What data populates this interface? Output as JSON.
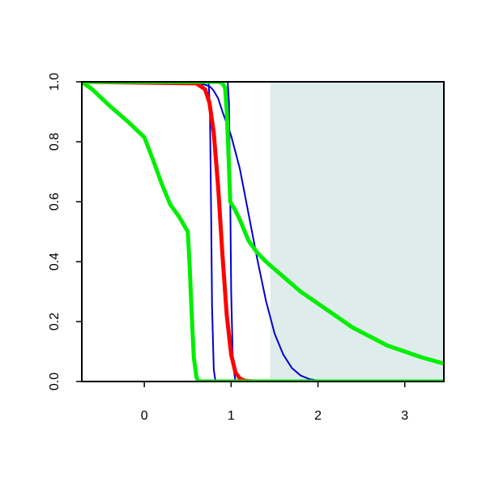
{
  "chart_data": {
    "type": "line",
    "title": "",
    "xlabel": "",
    "ylabel": "",
    "xlim": [
      -0.72,
      3.45
    ],
    "ylim": [
      0,
      1
    ],
    "grid": false,
    "x_ticks": [
      {
        "value": 0,
        "label": "0"
      },
      {
        "value": 1,
        "label": "1"
      },
      {
        "value": 2,
        "label": "2"
      },
      {
        "value": 3,
        "label": "3"
      }
    ],
    "y_ticks": [
      {
        "value": 0,
        "label": "0.0"
      },
      {
        "value": 0.2,
        "label": "0.2"
      },
      {
        "value": 0.4,
        "label": "0.4"
      },
      {
        "value": 0.6,
        "label": "0.6"
      },
      {
        "value": 0.8,
        "label": "0.8"
      },
      {
        "value": 1,
        "label": "1.0"
      }
    ],
    "shaded_region": {
      "x_from": 1.45,
      "x_to": 3.45,
      "y_from": 0,
      "y_to": 1,
      "color": "#dfecec"
    },
    "series": [
      {
        "color": "#0000cc",
        "weight": "thin",
        "x": [
          -0.72,
          0.5,
          0.7,
          0.75,
          0.77,
          0.8,
          0.85,
          0.9,
          1.0,
          1.1,
          1.2,
          1.3,
          1.4,
          1.5,
          1.6,
          1.7,
          1.8,
          1.9,
          2.0,
          2.1,
          2.3,
          3.45
        ],
        "y": [
          1.0,
          1.0,
          0.99,
          0.985,
          0.98,
          0.97,
          0.945,
          0.9,
          0.82,
          0.71,
          0.56,
          0.41,
          0.27,
          0.16,
          0.09,
          0.045,
          0.02,
          0.008,
          0.003,
          0.001,
          0.0,
          0.0
        ]
      },
      {
        "color": "#0000cc",
        "weight": "thin",
        "x": [
          -0.72,
          0.74,
          0.755,
          0.77,
          0.78,
          0.8,
          0.82,
          3.45
        ],
        "y": [
          1.0,
          1.0,
          0.92,
          0.55,
          0.25,
          0.04,
          0.0,
          0.0
        ]
      },
      {
        "color": "#0000cc",
        "weight": "thin",
        "x": [
          -0.72,
          0.96,
          0.975,
          0.99,
          1.0,
          1.02,
          1.05,
          3.45
        ],
        "y": [
          1.0,
          1.0,
          0.93,
          0.6,
          0.3,
          0.06,
          0.0,
          0.0
        ]
      },
      {
        "color": "#ff0000",
        "weight": "thick",
        "x": [
          -0.72,
          0.6,
          0.7,
          0.75,
          0.8,
          0.85,
          0.9,
          0.95,
          1.0,
          1.05,
          1.1,
          1.15,
          1.2,
          1.3,
          3.45
        ],
        "y": [
          1.0,
          0.995,
          0.975,
          0.93,
          0.83,
          0.65,
          0.42,
          0.22,
          0.09,
          0.03,
          0.01,
          0.003,
          0.001,
          0.0,
          0.0
        ]
      },
      {
        "color": "#00ee00",
        "weight": "thick",
        "x": [
          -0.72,
          -0.6,
          -0.4,
          -0.2,
          0.0,
          0.1,
          0.2,
          0.3,
          0.4,
          0.5,
          0.52,
          0.55,
          0.57,
          0.6,
          0.62,
          0.65,
          3.45
        ],
        "y": [
          1.0,
          0.975,
          0.92,
          0.87,
          0.815,
          0.74,
          0.66,
          0.59,
          0.55,
          0.5,
          0.4,
          0.2,
          0.08,
          0.015,
          0.002,
          0.0,
          0.0
        ]
      },
      {
        "color": "#00ee00",
        "weight": "thick",
        "x": [
          -0.72,
          0.85,
          0.9,
          0.93,
          0.95,
          0.97,
          0.99,
          1.05,
          1.1,
          1.2,
          1.3,
          1.4,
          1.6,
          1.8,
          2.0,
          2.2,
          2.4,
          2.6,
          2.8,
          3.0,
          3.2,
          3.45
        ],
        "y": [
          1.0,
          1.0,
          0.995,
          0.98,
          0.9,
          0.75,
          0.6,
          0.57,
          0.54,
          0.47,
          0.43,
          0.4,
          0.35,
          0.3,
          0.26,
          0.22,
          0.18,
          0.15,
          0.12,
          0.1,
          0.08,
          0.06
        ]
      }
    ]
  }
}
